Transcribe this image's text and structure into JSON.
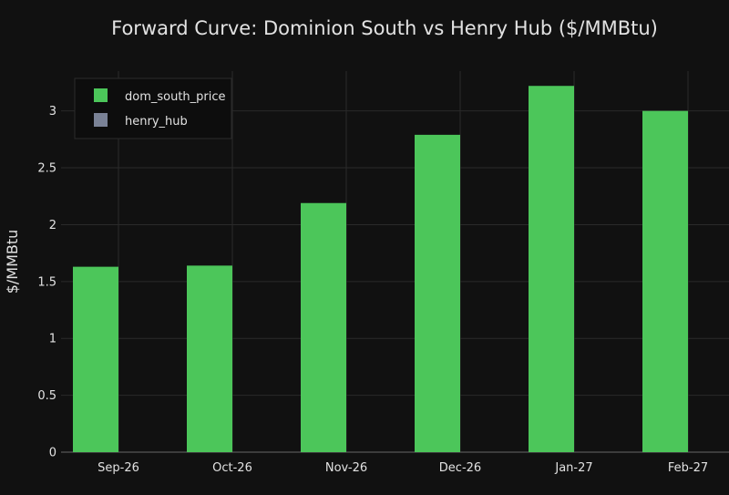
{
  "chart_data": {
    "type": "bar",
    "title": "Forward Curve: Dominion South vs Henry Hub ($/MMBtu)",
    "xlabel": "",
    "ylabel": "$/MMBtu",
    "categories": [
      "Sep-26",
      "Oct-26",
      "Nov-26",
      "Dec-26",
      "Jan-27",
      "Feb-27"
    ],
    "series": [
      {
        "name": "dom_south_price",
        "values": [
          1.63,
          1.64,
          2.19,
          2.79,
          3.22,
          3.0
        ],
        "color": "#4cc65a"
      },
      {
        "name": "henry_hub",
        "values": [
          0,
          0,
          0,
          0,
          0,
          0
        ],
        "color": "#7a8296"
      }
    ],
    "ylim": [
      0,
      3.35
    ],
    "yticks": [
      0,
      0.5,
      1,
      1.5,
      2,
      2.5,
      3
    ],
    "ytick_labels": [
      "0",
      "0.5",
      "1",
      "1.5",
      "2",
      "2.5",
      "3"
    ],
    "grid": true,
    "legend": "top-left"
  }
}
